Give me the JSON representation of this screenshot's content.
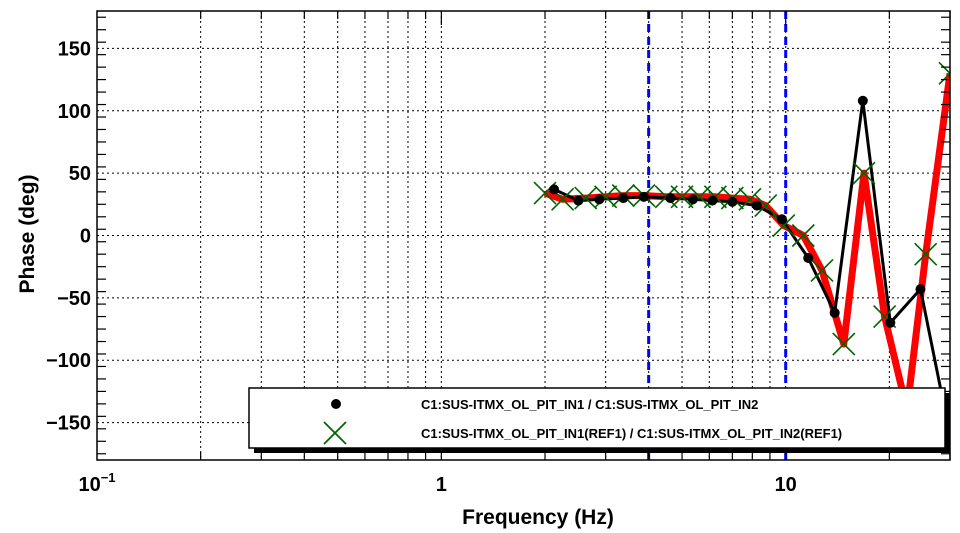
{
  "chart_data": {
    "type": "line",
    "title": "",
    "xlabel": "Frequency (Hz)",
    "ylabel": "Phase (deg)",
    "x_scale": "log",
    "xlim": [
      0.1,
      30
    ],
    "ylim": [
      -180,
      180
    ],
    "x_ticks": [
      {
        "value": 0.1,
        "base": "10",
        "exp": "−1"
      },
      {
        "value": 1,
        "base": "1",
        "exp": ""
      },
      {
        "value": 10,
        "base": "10",
        "exp": ""
      }
    ],
    "y_ticks": [
      {
        "value": 150,
        "label": "150"
      },
      {
        "value": 100,
        "label": "100"
      },
      {
        "value": 50,
        "label": "50"
      },
      {
        "value": 0,
        "label": "0"
      },
      {
        "value": -50,
        "label": "−50"
      },
      {
        "value": -100,
        "label": "−100"
      },
      {
        "value": -150,
        "label": "−150"
      }
    ],
    "grid": true,
    "vertical_markers": [
      {
        "x": 4.0,
        "color": "#0000ff",
        "style": "dashed"
      },
      {
        "x": 10.0,
        "color": "#0000ff",
        "style": "dashed"
      }
    ],
    "legend_position": "bottom-right",
    "series": [
      {
        "name": "C1:SUS-ITMX_OL_PIT_IN1 / C1:SUS-ITMX_OL_PIT_IN2",
        "marker": "dot",
        "color": "#000000",
        "x": [
          2.125,
          2.5,
          2.875,
          3.375,
          3.875,
          4.625,
          5.375,
          6.125,
          7.0,
          8.25,
          9.75,
          11.625,
          13.875,
          16.75,
          20.125,
          24.625,
          30.0
        ],
        "y": [
          37,
          28,
          29,
          30,
          31,
          30,
          29,
          28,
          27,
          24,
          13,
          -18,
          -62,
          108,
          -70,
          -43,
          -160
        ]
      },
      {
        "name": "C1:SUS-ITMX_OL_PIT_IN1(REF1) / C1:SUS-ITMX_OL_PIT_IN2(REF1)",
        "marker": "x",
        "color": "#006400",
        "line_color": "#ff0000",
        "x": [
          2.0,
          2.25,
          2.625,
          3.0,
          3.375,
          3.875,
          4.5,
          5.0,
          5.625,
          6.25,
          7.0,
          7.875,
          8.75,
          9.875,
          11.25,
          12.75,
          14.75,
          16.875,
          19.375,
          22.5,
          25.5,
          30.0
        ],
        "y": [
          34,
          29,
          30,
          31,
          32,
          32,
          31,
          31,
          31,
          31,
          30,
          29,
          24,
          8,
          0,
          -28,
          -87,
          50,
          -65,
          -140,
          -15,
          130
        ]
      }
    ]
  }
}
